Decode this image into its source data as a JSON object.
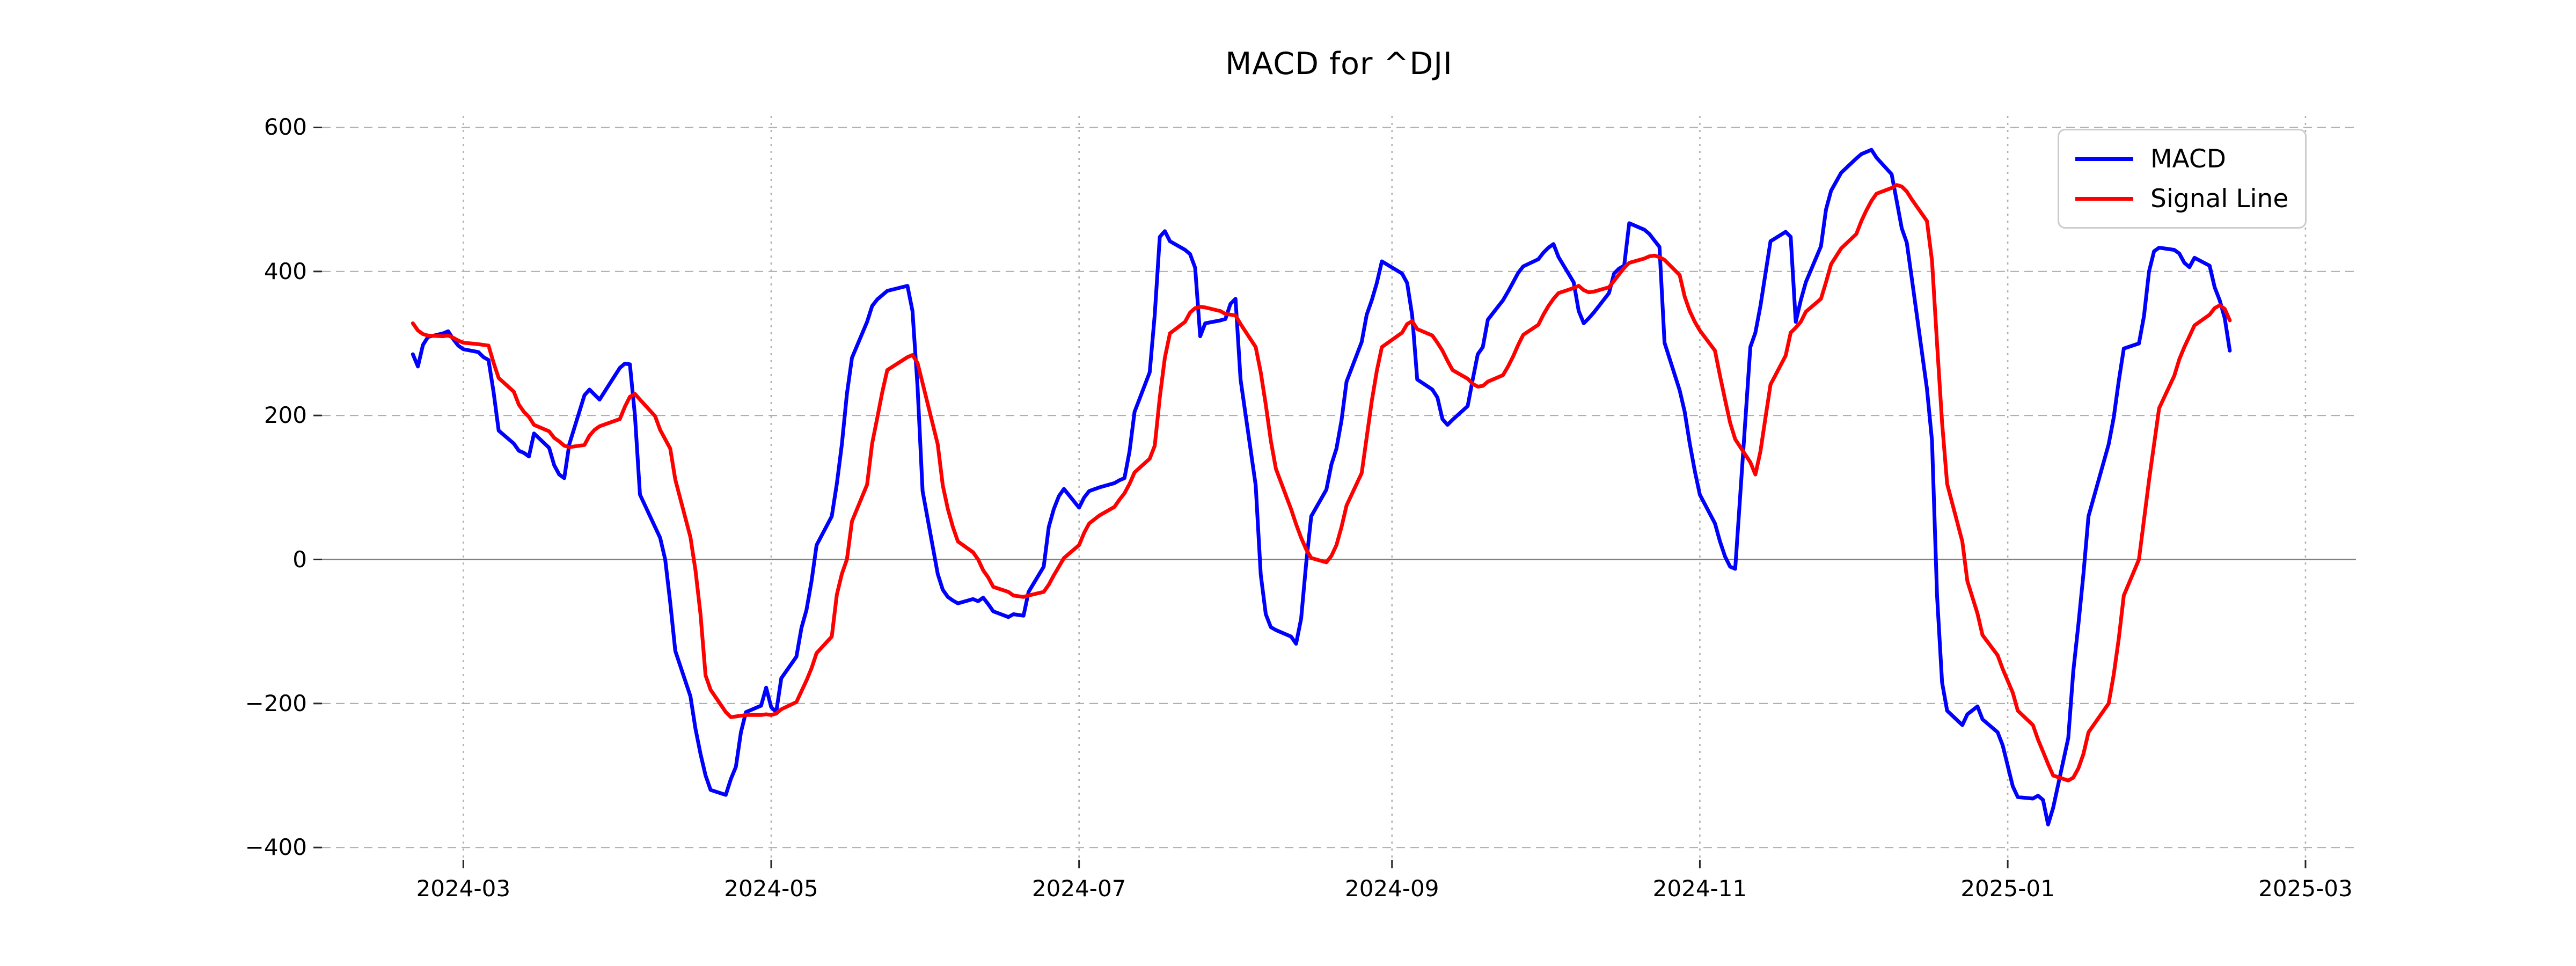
{
  "figure": {
    "title": "MACD for ^DJI",
    "background": "#ffffff"
  },
  "legend": {
    "position": "upper-right",
    "items": [
      {
        "label": "MACD",
        "color": "#0000ff"
      },
      {
        "label": "Signal Line",
        "color": "#ff0000"
      }
    ]
  },
  "axes": {
    "grid": true,
    "grid_color": "#b0b0b0",
    "zero_line_color": "#808080",
    "tick_color": "#262626",
    "y_ticks": [
      {
        "value": 600,
        "label": "600"
      },
      {
        "value": 400,
        "label": "400"
      },
      {
        "value": 200,
        "label": "200"
      },
      {
        "value": 0,
        "label": "0"
      },
      {
        "value": -200,
        "label": "−200"
      },
      {
        "value": -400,
        "label": "−400"
      }
    ],
    "x_ticks": [
      {
        "date": "2024-03-01",
        "label": "2024-03"
      },
      {
        "date": "2024-05-01",
        "label": "2024-05"
      },
      {
        "date": "2024-07-01",
        "label": "2024-07"
      },
      {
        "date": "2024-09-01",
        "label": "2024-09"
      },
      {
        "date": "2024-11-01",
        "label": "2024-11"
      },
      {
        "date": "2025-01-01",
        "label": "2025-01"
      },
      {
        "date": "2025-03-01",
        "label": "2025-03"
      }
    ]
  },
  "chart_data": {
    "type": "line",
    "title": "MACD for ^DJI",
    "xlabel": "",
    "ylabel": "",
    "xlim": [
      "2024-02-02",
      "2025-03-11"
    ],
    "ylim": [
      -417,
      616
    ],
    "legend_position": "upper right",
    "grid": true,
    "dates": [
      "2024-02-20",
      "2024-02-21",
      "2024-02-22",
      "2024-02-23",
      "2024-02-26",
      "2024-02-27",
      "2024-02-28",
      "2024-02-29",
      "2024-03-01",
      "2024-03-04",
      "2024-03-05",
      "2024-03-06",
      "2024-03-07",
      "2024-03-08",
      "2024-03-11",
      "2024-03-12",
      "2024-03-13",
      "2024-03-14",
      "2024-03-15",
      "2024-03-18",
      "2024-03-19",
      "2024-03-20",
      "2024-03-21",
      "2024-03-22",
      "2024-03-25",
      "2024-03-26",
      "2024-03-27",
      "2024-03-28",
      "2024-04-01",
      "2024-04-02",
      "2024-04-03",
      "2024-04-04",
      "2024-04-05",
      "2024-04-08",
      "2024-04-09",
      "2024-04-10",
      "2024-04-11",
      "2024-04-12",
      "2024-04-15",
      "2024-04-16",
      "2024-04-17",
      "2024-04-18",
      "2024-04-19",
      "2024-04-22",
      "2024-04-23",
      "2024-04-24",
      "2024-04-25",
      "2024-04-26",
      "2024-04-29",
      "2024-04-30",
      "2024-05-01",
      "2024-05-02",
      "2024-05-03",
      "2024-05-06",
      "2024-05-07",
      "2024-05-08",
      "2024-05-09",
      "2024-05-10",
      "2024-05-13",
      "2024-05-14",
      "2024-05-15",
      "2024-05-16",
      "2024-05-17",
      "2024-05-20",
      "2024-05-21",
      "2024-05-22",
      "2024-05-23",
      "2024-05-24",
      "2024-05-28",
      "2024-05-29",
      "2024-05-30",
      "2024-05-31",
      "2024-06-03",
      "2024-06-04",
      "2024-06-05",
      "2024-06-06",
      "2024-06-07",
      "2024-06-10",
      "2024-06-11",
      "2024-06-12",
      "2024-06-13",
      "2024-06-14",
      "2024-06-17",
      "2024-06-18",
      "2024-06-20",
      "2024-06-21",
      "2024-06-24",
      "2024-06-25",
      "2024-06-26",
      "2024-06-27",
      "2024-06-28",
      "2024-07-01",
      "2024-07-02",
      "2024-07-03",
      "2024-07-05",
      "2024-07-08",
      "2024-07-09",
      "2024-07-10",
      "2024-07-11",
      "2024-07-12",
      "2024-07-15",
      "2024-07-16",
      "2024-07-17",
      "2024-07-18",
      "2024-07-19",
      "2024-07-22",
      "2024-07-23",
      "2024-07-24",
      "2024-07-25",
      "2024-07-26",
      "2024-07-29",
      "2024-07-30",
      "2024-07-31",
      "2024-08-01",
      "2024-08-02",
      "2024-08-05",
      "2024-08-06",
      "2024-08-07",
      "2024-08-08",
      "2024-08-09",
      "2024-08-12",
      "2024-08-13",
      "2024-08-14",
      "2024-08-15",
      "2024-08-16",
      "2024-08-19",
      "2024-08-20",
      "2024-08-21",
      "2024-08-22",
      "2024-08-23",
      "2024-08-26",
      "2024-08-27",
      "2024-08-28",
      "2024-08-29",
      "2024-08-30",
      "2024-09-03",
      "2024-09-04",
      "2024-09-05",
      "2024-09-06",
      "2024-09-09",
      "2024-09-10",
      "2024-09-11",
      "2024-09-12",
      "2024-09-13",
      "2024-09-16",
      "2024-09-17",
      "2024-09-18",
      "2024-09-19",
      "2024-09-20",
      "2024-09-23",
      "2024-09-24",
      "2024-09-25",
      "2024-09-26",
      "2024-09-27",
      "2024-09-30",
      "2024-10-01",
      "2024-10-02",
      "2024-10-03",
      "2024-10-04",
      "2024-10-07",
      "2024-10-08",
      "2024-10-09",
      "2024-10-10",
      "2024-10-11",
      "2024-10-14",
      "2024-10-15",
      "2024-10-16",
      "2024-10-17",
      "2024-10-18",
      "2024-10-21",
      "2024-10-22",
      "2024-10-23",
      "2024-10-24",
      "2024-10-25",
      "2024-10-28",
      "2024-10-29",
      "2024-10-30",
      "2024-10-31",
      "2024-11-01",
      "2024-11-04",
      "2024-11-05",
      "2024-11-06",
      "2024-11-07",
      "2024-11-08",
      "2024-11-11",
      "2024-11-12",
      "2024-11-13",
      "2024-11-14",
      "2024-11-15",
      "2024-11-18",
      "2024-11-19",
      "2024-11-20",
      "2024-11-21",
      "2024-11-22",
      "2024-11-25",
      "2024-11-26",
      "2024-11-27",
      "2024-11-29",
      "2024-12-02",
      "2024-12-03",
      "2024-12-04",
      "2024-12-05",
      "2024-12-06",
      "2024-12-09",
      "2024-12-10",
      "2024-12-11",
      "2024-12-12",
      "2024-12-13",
      "2024-12-16",
      "2024-12-17",
      "2024-12-18",
      "2024-12-19",
      "2024-12-20",
      "2024-12-23",
      "2024-12-24",
      "2024-12-26",
      "2024-12-27",
      "2024-12-30",
      "2024-12-31",
      "2025-01-02",
      "2025-01-03",
      "2025-01-06",
      "2025-01-07",
      "2025-01-08",
      "2025-01-09",
      "2025-01-10",
      "2025-01-13",
      "2025-01-14",
      "2025-01-15",
      "2025-01-16",
      "2025-01-17",
      "2025-01-21",
      "2025-01-22",
      "2025-01-23",
      "2025-01-24",
      "2025-01-27",
      "2025-01-28",
      "2025-01-29",
      "2025-01-30",
      "2025-01-31",
      "2025-02-03",
      "2025-02-04",
      "2025-02-05",
      "2025-02-06",
      "2025-02-07",
      "2025-02-10",
      "2025-02-11",
      "2025-02-12",
      "2025-02-13",
      "2025-02-14"
    ],
    "series": [
      {
        "name": "MACD",
        "color": "#0000ff",
        "line_width": 7,
        "values": [
          285,
          268,
          298,
          309,
          314,
          317,
          306,
          297,
          292,
          288,
          281,
          277,
          232,
          179,
          161,
          151,
          148,
          143,
          175,
          155,
          131,
          118,
          113,
          160,
          228,
          236,
          229,
          222,
          266,
          272,
          271,
          200,
          90,
          45,
          30,
          0,
          -60,
          -127,
          -190,
          -235,
          -270,
          -300,
          -320,
          -327,
          -305,
          -288,
          -240,
          -212,
          -203,
          -178,
          -205,
          -212,
          -165,
          -135,
          -95,
          -70,
          -30,
          20,
          60,
          105,
          160,
          230,
          280,
          330,
          352,
          361,
          367,
          373,
          380,
          345,
          240,
          95,
          -20,
          -42,
          -52,
          -57,
          -61,
          -55,
          -58,
          -53,
          -62,
          -72,
          -80,
          -76,
          -78,
          -45,
          -10,
          45,
          70,
          88,
          98,
          72,
          86,
          95,
          100,
          106,
          110,
          113,
          150,
          205,
          260,
          340,
          448,
          456,
          442,
          430,
          424,
          405,
          310,
          328,
          332,
          334,
          355,
          362,
          250,
          103,
          -21,
          -76,
          -94,
          -98,
          -107,
          -117,
          -82,
          -5,
          60,
          97,
          132,
          154,
          193,
          247,
          302,
          340,
          360,
          384,
          414,
          397,
          384,
          339,
          250,
          236,
          225,
          195,
          187,
          194,
          213,
          250,
          285,
          295,
          333,
          360,
          372,
          385,
          398,
          407,
          417,
          426,
          433,
          438,
          420,
          385,
          345,
          328,
          335,
          343,
          370,
          397,
          404,
          408,
          467,
          458,
          452,
          443,
          434,
          301,
          235,
          205,
          161,
          123,
          90,
          50,
          25,
          4,
          -10,
          -13,
          295,
          315,
          352,
          397,
          442,
          455,
          448,
          330,
          360,
          385,
          435,
          486,
          512,
          537,
          557,
          563,
          566,
          569,
          558,
          535,
          498,
          460,
          440,
          390,
          237,
          165,
          -50,
          -171,
          -210,
          -230,
          -215,
          -204,
          -222,
          -240,
          -258,
          -315,
          -330,
          -332,
          -328,
          -334,
          -368,
          -345,
          -248,
          -155,
          -90,
          -20,
          60,
          160,
          197,
          248,
          293,
          300,
          338,
          400,
          428,
          433,
          430,
          425,
          412,
          406,
          419,
          408,
          378,
          360,
          335,
          290
        ]
      },
      {
        "name": "Signal Line",
        "color": "#ff0000",
        "line_width": 7,
        "values": [
          328,
          318,
          313,
          311,
          310,
          311,
          308,
          304,
          301,
          299,
          298,
          297,
          273,
          252,
          233,
          215,
          205,
          198,
          187,
          178,
          169,
          164,
          158,
          156,
          159,
          172,
          180,
          185,
          195,
          212,
          226,
          230,
          222,
          199,
          180,
          167,
          154,
          111,
          31,
          -15,
          -76,
          -161,
          -181,
          -212,
          -219,
          -218,
          -217,
          -216,
          -216,
          -215,
          -216,
          -214,
          -208,
          -198,
          -183,
          -168,
          -151,
          -130,
          -107,
          -49,
          -20,
          0,
          53,
          104,
          161,
          196,
          232,
          263,
          281,
          284,
          273,
          245,
          160,
          103,
          70,
          45,
          25,
          10,
          0,
          -15,
          -25,
          -38,
          -45,
          -50,
          -52,
          -50,
          -45,
          -35,
          -22,
          -10,
          2,
          20,
          37,
          50,
          61,
          73,
          83,
          92,
          105,
          121,
          140,
          158,
          225,
          280,
          314,
          330,
          343,
          349,
          351,
          350,
          345,
          341,
          340,
          339,
          327,
          295,
          260,
          215,
          165,
          126,
          70,
          49,
          30,
          14,
          2,
          -4,
          5,
          20,
          45,
          75,
          120,
          170,
          220,
          262,
          295,
          315,
          327,
          331,
          320,
          311,
          301,
          290,
          276,
          263,
          251,
          244,
          240,
          241,
          247,
          256,
          268,
          282,
          298,
          312,
          326,
          340,
          352,
          362,
          370,
          377,
          380,
          374,
          371,
          372,
          378,
          387,
          396,
          405,
          412,
          418,
          421,
          422,
          420,
          416,
          395,
          365,
          345,
          330,
          318,
          290,
          255,
          222,
          190,
          167,
          135,
          118,
          150,
          197,
          243,
          283,
          315,
          322,
          330,
          344,
          362,
          385,
          410,
          432,
          452,
          470,
          485,
          498,
          508,
          516,
          520,
          518,
          511,
          500,
          470,
          415,
          300,
          190,
          105,
          25,
          -30,
          -75,
          -105,
          -133,
          -152,
          -185,
          -210,
          -230,
          -250,
          -267,
          -284,
          -300,
          -307,
          -303,
          -290,
          -270,
          -240,
          -200,
          -160,
          -110,
          -50,
          0,
          55,
          110,
          160,
          210,
          255,
          278,
          295,
          310,
          325,
          340,
          349,
          353,
          348,
          332
        ]
      }
    ]
  }
}
